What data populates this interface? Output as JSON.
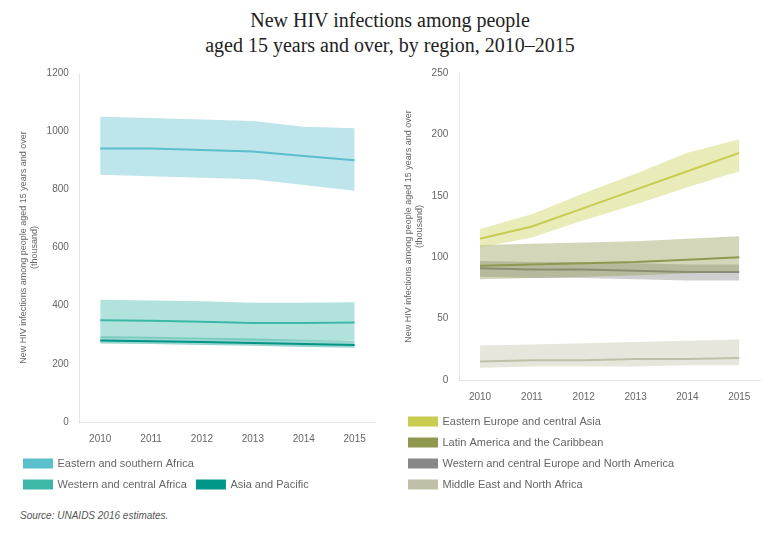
{
  "title": "New HIV infections among people\naged 15 years and over, by region, 2010–2015",
  "annotations": [
    "Source: UNAIDS 2016 estimates."
  ],
  "chart_data": [
    {
      "type": "line",
      "ylabel": "New HIV infections among people aged 15 years and over\n(thousand)",
      "x": [
        2010,
        2011,
        2012,
        2013,
        2014,
        2015
      ],
      "xlim": [
        2009.6,
        2015.4
      ],
      "xticks": [
        2010,
        2011,
        2012,
        2013,
        2014,
        2015
      ],
      "ylim": [
        0,
        1200
      ],
      "yticks": [
        0,
        200,
        400,
        600,
        800,
        1000,
        1200
      ],
      "grid": false,
      "legend": "bottom",
      "series": [
        {
          "name": "Eastern and southern Africa",
          "color": "#5bbfcc",
          "values": [
            940,
            940,
            935,
            930,
            915,
            900
          ],
          "lower": [
            850,
            845,
            840,
            835,
            815,
            795
          ],
          "upper": [
            1050,
            1045,
            1040,
            1035,
            1015,
            1010
          ]
        },
        {
          "name": "Western and central Africa",
          "color": "#3db8a8",
          "values": [
            350,
            348,
            345,
            340,
            340,
            342
          ],
          "lower": [
            290,
            288,
            285,
            280,
            280,
            282
          ],
          "upper": [
            420,
            418,
            415,
            410,
            410,
            412
          ]
        },
        {
          "name": "Asia and Pacific",
          "color": "#009688",
          "values": [
            280,
            278,
            275,
            272,
            268,
            265
          ],
          "lower": [
            270,
            268,
            265,
            262,
            258,
            255
          ],
          "upper": [
            295,
            293,
            290,
            287,
            283,
            280
          ]
        }
      ]
    },
    {
      "type": "line",
      "ylabel": "New HIV infections among people aged 15 years and over\n(thousand)",
      "x": [
        2010,
        2011,
        2012,
        2013,
        2014,
        2015
      ],
      "xlim": [
        2009.6,
        2015.4
      ],
      "xticks": [
        2010,
        2011,
        2012,
        2013,
        2014,
        2015
      ],
      "ylim": [
        0,
        250
      ],
      "yticks": [
        0,
        50,
        100,
        150,
        200,
        250
      ],
      "grid": false,
      "legend": "bottom",
      "series": [
        {
          "name": "Eastern Europe and central Asia",
          "color": "#c8cc50",
          "values": [
            115,
            125,
            140,
            155,
            170,
            185
          ],
          "lower": [
            108,
            116,
            130,
            143,
            157,
            170
          ],
          "upper": [
            123,
            135,
            152,
            168,
            185,
            196
          ]
        },
        {
          "name": "Latin America and the Caribbean",
          "color": "#909850",
          "values": [
            93,
            94,
            95,
            96,
            98,
            100
          ],
          "lower": [
            82,
            83,
            84,
            85,
            87,
            88
          ],
          "upper": [
            110,
            111,
            112,
            113,
            115,
            117
          ]
        },
        {
          "name": "Western and central Europe and North America",
          "color": "#888888",
          "values": [
            91,
            90,
            90,
            89,
            88,
            88
          ],
          "lower": [
            84,
            83,
            83,
            82,
            81,
            81
          ],
          "upper": [
            97,
            96,
            96,
            95,
            94,
            94
          ]
        },
        {
          "name": "Middle East and North Africa",
          "color": "#c0c0a8",
          "values": [
            15,
            16,
            16,
            17,
            17,
            18
          ],
          "lower": [
            10,
            11,
            11,
            11,
            12,
            12
          ],
          "upper": [
            28,
            29,
            30,
            31,
            32,
            33
          ]
        }
      ]
    }
  ]
}
